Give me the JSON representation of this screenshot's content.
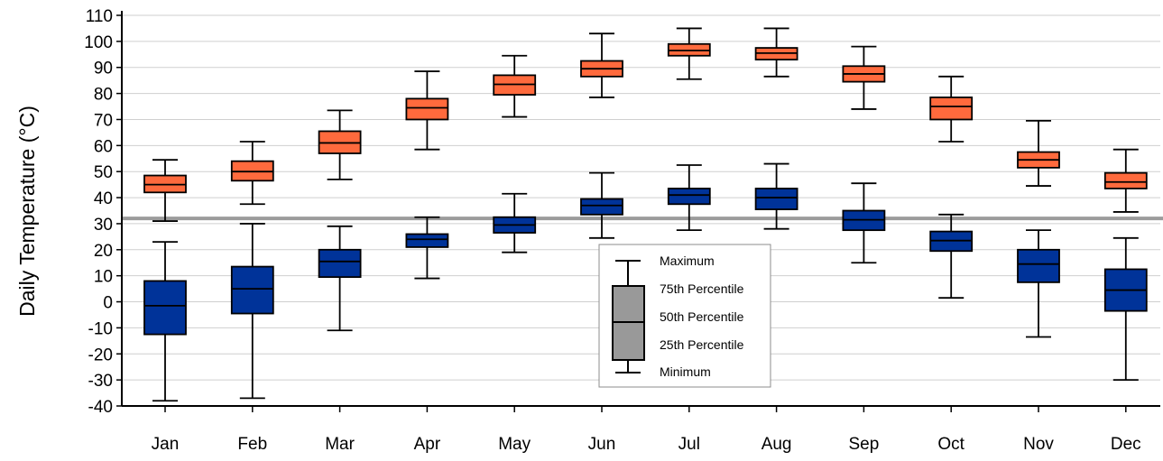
{
  "chart_data": {
    "type": "box",
    "ylabel": "Daily Temperature (°C)",
    "ylim": [
      -40,
      110
    ],
    "yticks": [
      "110",
      "100",
      "90",
      "80",
      "70",
      "60",
      "50",
      "40",
      "30",
      "20",
      "10",
      "0",
      "-10",
      "-20",
      "-30",
      "-40"
    ],
    "yticks_values": [
      110,
      100,
      90,
      80,
      70,
      60,
      50,
      40,
      30,
      20,
      10,
      0,
      -10,
      -20,
      -30,
      -40
    ],
    "categories": [
      "Jan",
      "Feb",
      "Mar",
      "Apr",
      "May",
      "Jun",
      "Jul",
      "Aug",
      "Sep",
      "Oct",
      "Nov",
      "Dec"
    ],
    "reference_line": 32,
    "grid": "horizontal",
    "series": [
      {
        "color": "#ff6a3d",
        "min": [
          31,
          37.5,
          47,
          58.5,
          71,
          78.5,
          85.5,
          86.5,
          74,
          61.5,
          44.5,
          34.5
        ],
        "q1": [
          42,
          46.5,
          57,
          70,
          79.5,
          86.5,
          94.5,
          93,
          84.5,
          70,
          51.5,
          43.5
        ],
        "median": [
          45,
          50,
          61,
          74.5,
          83.5,
          89.5,
          96.5,
          95.5,
          87.5,
          75,
          54.5,
          46
        ],
        "q3": [
          48.5,
          54,
          65.5,
          78,
          87,
          92.5,
          99,
          97.5,
          90.5,
          78.5,
          57.5,
          49.5
        ],
        "max": [
          54.5,
          61.5,
          73.5,
          88.5,
          94.5,
          103,
          105,
          105,
          98,
          86.5,
          69.5,
          58.5
        ]
      },
      {
        "color": "#003399",
        "min": [
          -38,
          -37,
          -11,
          9,
          19,
          24.5,
          27.5,
          28,
          15,
          1.5,
          -13.5,
          -30
        ],
        "q1": [
          -12.5,
          -4.5,
          9.5,
          21,
          26.5,
          33.5,
          37.5,
          35.5,
          27.5,
          19.5,
          7.5,
          -3.5
        ],
        "median": [
          -1.5,
          5,
          15.5,
          24,
          29.5,
          37,
          41,
          40,
          31.5,
          23.5,
          14.5,
          4.5
        ],
        "q3": [
          8,
          13.5,
          20,
          26,
          32.5,
          39.5,
          43.5,
          43.5,
          35,
          27,
          20,
          12.5
        ],
        "max": [
          23,
          30,
          29,
          32.5,
          41.5,
          49.5,
          52.5,
          53,
          45.5,
          33.5,
          27.5,
          24.5
        ]
      }
    ],
    "legend": {
      "placement": "bottom-center",
      "entries": [
        "Maximum",
        "75th Percentile",
        "50th Percentile",
        "25th Percentile",
        "Minimum"
      ],
      "sample_color": "#999999"
    }
  }
}
